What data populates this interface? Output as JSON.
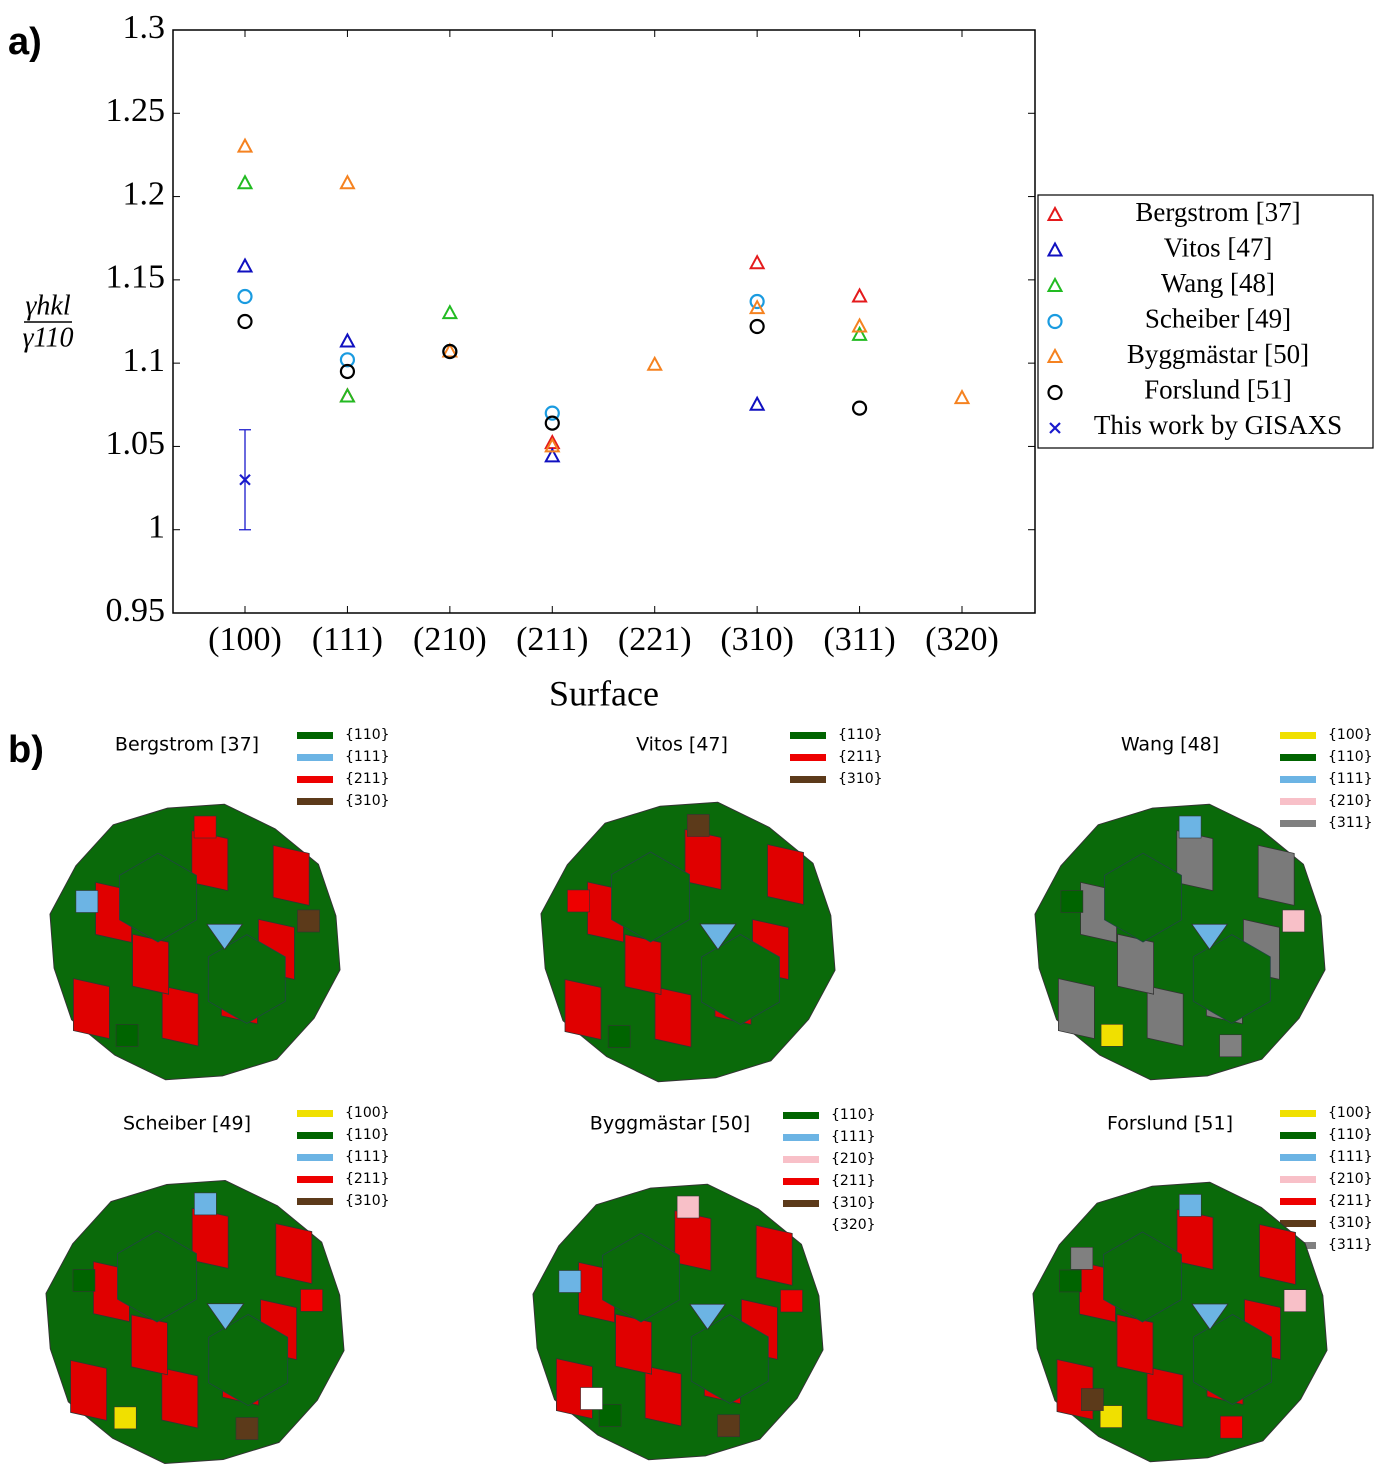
{
  "panel_labels": [
    "a)",
    "b)"
  ],
  "chart_data": {
    "type": "scatter",
    "y_label": {
      "numerator": "γhkl",
      "denominator": "γ110"
    },
    "x_label": "Surface",
    "categories": [
      "(100)",
      "(111)",
      "(210)",
      "(211)",
      "(221)",
      "(310)",
      "(311)",
      "(320)"
    ],
    "ylim": [
      0.95,
      1.3
    ],
    "yticks": [
      0.95,
      1,
      1.05,
      1.1,
      1.15,
      1.2,
      1.25,
      1.3
    ],
    "legend": "right-outside",
    "series": [
      {
        "name": "Bergstrom [37]",
        "color": "#e41a1c",
        "marker": "triangle",
        "values": [
          null,
          1.08,
          null,
          1.052,
          null,
          1.16,
          1.14,
          null
        ]
      },
      {
        "name": "Vitos [47]",
        "color": "#1010c0",
        "marker": "triangle",
        "values": [
          1.158,
          1.113,
          null,
          1.044,
          null,
          1.075,
          null,
          null
        ]
      },
      {
        "name": "Wang [48]",
        "color": "#22bb22",
        "marker": "triangle",
        "values": [
          1.208,
          1.08,
          1.13,
          null,
          null,
          null,
          1.117,
          null
        ]
      },
      {
        "name": "Scheiber [49]",
        "color": "#1a9be0",
        "marker": "circle",
        "values": [
          1.14,
          1.102,
          1.107,
          1.07,
          null,
          1.137,
          null,
          null
        ]
      },
      {
        "name": "Byggmästar [50]",
        "color": "#f58220",
        "marker": "triangle",
        "values": [
          1.23,
          1.208,
          1.107,
          1.05,
          1.099,
          1.133,
          1.122,
          1.079
        ]
      },
      {
        "name": "Forslund [51]",
        "color": "#000000",
        "marker": "circle",
        "values": [
          1.125,
          1.095,
          1.107,
          1.064,
          null,
          1.122,
          1.073,
          null
        ]
      },
      {
        "name": "This work by GISAXS",
        "color": "#1a1acc",
        "marker": "x",
        "values": [
          1.03,
          null,
          null,
          null,
          null,
          null,
          null,
          null
        ],
        "errors": [
          0.03,
          null,
          null,
          null,
          null,
          null,
          null,
          null
        ]
      }
    ]
  },
  "shapes": [
    {
      "title": "Bergstrom  [37]",
      "legend": [
        {
          "label": "{110}",
          "color": "#006400"
        },
        {
          "label": "{111}",
          "color": "#6cb4e4"
        },
        {
          "label": "{211}",
          "color": "#ee0000"
        },
        {
          "label": "{310}",
          "color": "#5c3a1a"
        }
      ]
    },
    {
      "title": "Vitos [47]",
      "legend": [
        {
          "label": "{110}",
          "color": "#006400"
        },
        {
          "label": "{211}",
          "color": "#ee0000"
        },
        {
          "label": "{310}",
          "color": "#5c3a1a"
        }
      ]
    },
    {
      "title": "Wang [48]",
      "legend": [
        {
          "label": "{100}",
          "color": "#f0e000"
        },
        {
          "label": "{110}",
          "color": "#006400"
        },
        {
          "label": "{111}",
          "color": "#6cb4e4"
        },
        {
          "label": "{210}",
          "color": "#f8c0c8"
        },
        {
          "label": "{311}",
          "color": "#808080"
        }
      ]
    },
    {
      "title": "Scheiber [49]",
      "legend": [
        {
          "label": "{100}",
          "color": "#f0e000"
        },
        {
          "label": "{110}",
          "color": "#006400"
        },
        {
          "label": "{111}",
          "color": "#6cb4e4"
        },
        {
          "label": "{211}",
          "color": "#ee0000"
        },
        {
          "label": "{310}",
          "color": "#5c3a1a"
        }
      ]
    },
    {
      "title": "Byggmästar [50]",
      "legend": [
        {
          "label": "{110}",
          "color": "#006400"
        },
        {
          "label": "{111}",
          "color": "#6cb4e4"
        },
        {
          "label": "{210}",
          "color": "#f8c0c8"
        },
        {
          "label": "{211}",
          "color": "#ee0000"
        },
        {
          "label": "{310}",
          "color": "#5c3a1a"
        },
        {
          "label": "{320}",
          "color": "#ffffff"
        }
      ]
    },
    {
      "title": "Forslund [51]",
      "legend": [
        {
          "label": "{100}",
          "color": "#f0e000"
        },
        {
          "label": "{110}",
          "color": "#006400"
        },
        {
          "label": "{111}",
          "color": "#6cb4e4"
        },
        {
          "label": "{210}",
          "color": "#f8c0c8"
        },
        {
          "label": "{211}",
          "color": "#ee0000"
        },
        {
          "label": "{310}",
          "color": "#5c3a1a"
        },
        {
          "label": "{311}",
          "color": "#808080"
        }
      ]
    }
  ]
}
